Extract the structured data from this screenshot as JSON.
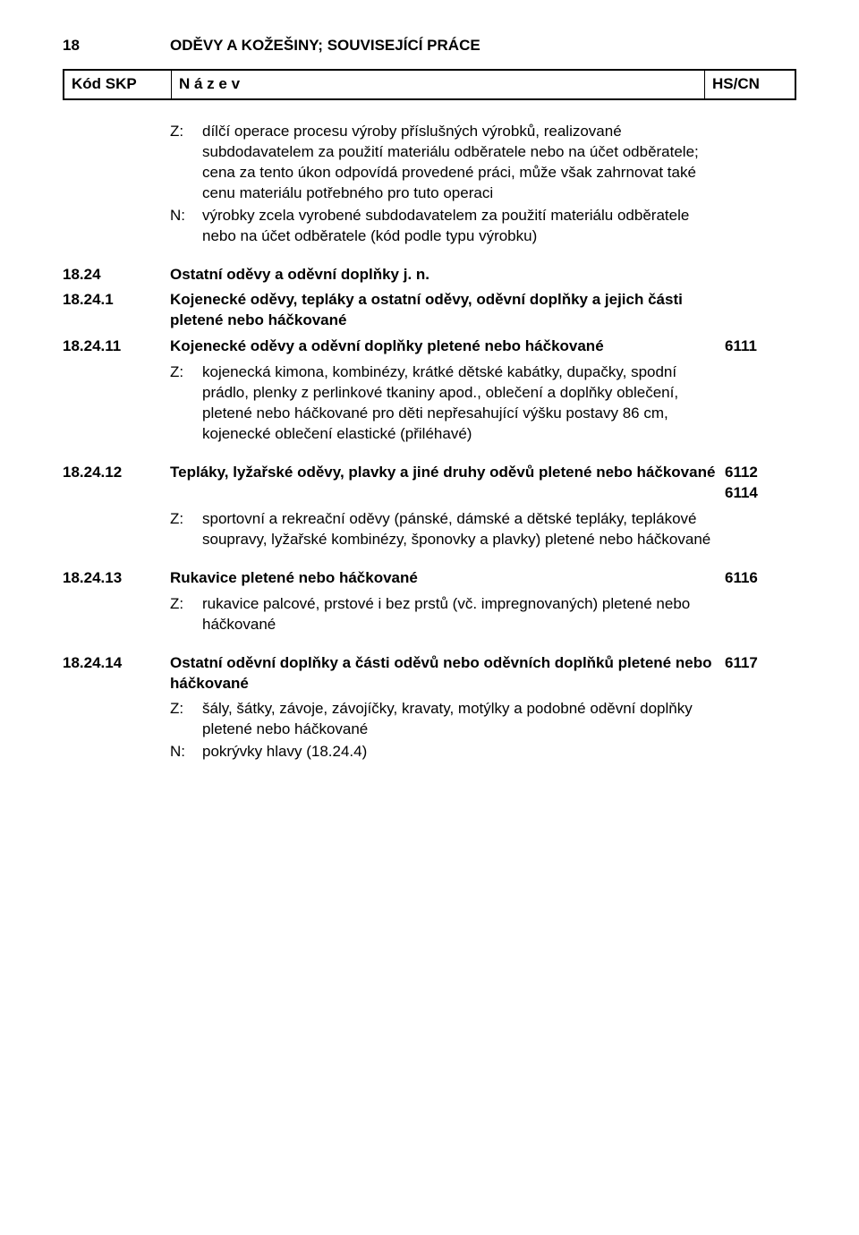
{
  "header": {
    "section_code": "18",
    "section_title": "ODĚVY A KOŽEŠINY; SOUVISEJÍCÍ PRÁCE"
  },
  "table_header": {
    "code": "Kód SKP",
    "name": "N á z e v",
    "hs": "HS/CN"
  },
  "intro_notes": [
    {
      "letter": "Z:",
      "text": "dílčí operace procesu výroby příslušných výrobků, realizované subdodavatelem za použití materiálu odběratele nebo na účet odběratele; cena za tento úkon odpovídá provedené práci, může však zahrnovat také cenu materiálu potřebného pro tuto operaci"
    },
    {
      "letter": "N:",
      "text": "výrobky zcela vyrobené subdodavatelem za použití materiálu odběratele nebo na účet odběratele (kód podle typu výrobku)"
    }
  ],
  "items": [
    {
      "code": "18.24",
      "title": "Ostatní oděvy a oděvní doplňky j. n.",
      "hs": "",
      "bold": true,
      "notes": []
    },
    {
      "code": "18.24.1",
      "title": "Kojenecké oděvy, tepláky a ostatní oděvy, oděvní doplňky a jejich části pletené nebo háčkované",
      "hs": "",
      "bold": true,
      "notes": []
    },
    {
      "code": "18.24.11",
      "title": "Kojenecké oděvy a oděvní doplňky pletené nebo háčkované",
      "hs": "6111",
      "bold": true,
      "notes": [
        {
          "letter": "Z:",
          "text": "kojenecká kimona, kombinézy, krátké dětské kabátky, dupačky, spodní prádlo, plenky z perlinkové tkaniny apod., oblečení a doplňky oblečení, pletené nebo háčkované pro děti nepřesahující výšku postavy 86 cm, kojenecké oblečení elastické (přiléhavé)"
        }
      ]
    },
    {
      "code": "18.24.12",
      "title": "Tepláky, lyžařské oděvy, plavky a jiné druhy oděvů pletené nebo háčkované",
      "hs": "6112\n6114",
      "bold": true,
      "notes": [
        {
          "letter": "Z:",
          "text": "sportovní a rekreační oděvy (pánské, dámské a dětské tepláky, teplákové soupravy, lyžařské kombinézy, šponovky a plavky) pletené nebo háčkované"
        }
      ]
    },
    {
      "code": "18.24.13",
      "title": "Rukavice pletené nebo háčkované",
      "hs": "6116",
      "bold": true,
      "notes": [
        {
          "letter": "Z:",
          "text": "rukavice palcové, prstové i bez prstů (vč. impregnovaných) pletené nebo háčkované"
        }
      ]
    },
    {
      "code": "18.24.14",
      "title": "Ostatní oděvní doplňky a části oděvů nebo oděvních doplňků pletené nebo háčkované",
      "hs": "6117",
      "bold": true,
      "notes": [
        {
          "letter": "Z:",
          "text": "šály, šátky, závoje, závojíčky, kravaty, motýlky a podobné oděvní doplňky pletené nebo háčkované"
        },
        {
          "letter": "N:",
          "text": "pokrývky hlavy (18.24.4)"
        }
      ]
    }
  ]
}
